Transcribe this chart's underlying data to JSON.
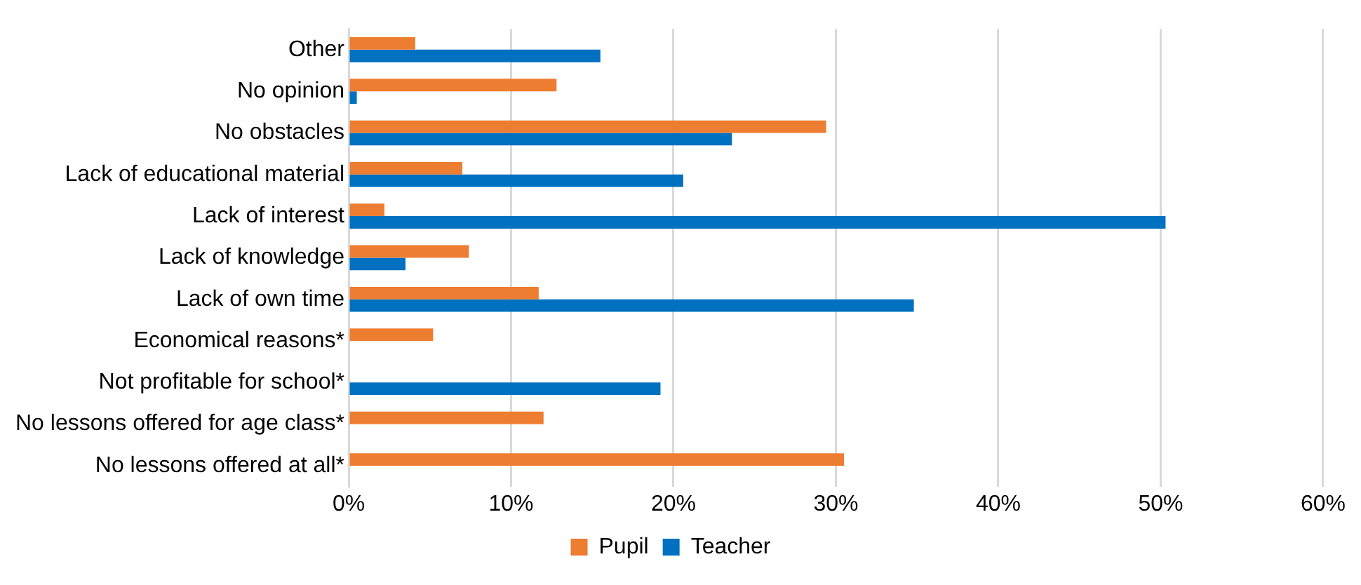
{
  "chart_data": {
    "type": "bar",
    "orientation": "horizontal",
    "categories": [
      "Other",
      "No opinion",
      "No obstacles",
      "Lack of educational material",
      "Lack of interest",
      "Lack of knowledge",
      "Lack of own time",
      "Economical reasons*",
      "Not profitable for school*",
      "No lessons offered for age class*",
      "No lessons offered at all*"
    ],
    "series": [
      {
        "name": "Pupil",
        "color": "#ed7d31",
        "values": [
          4.1,
          12.8,
          29.4,
          7.0,
          2.2,
          7.4,
          11.7,
          5.2,
          null,
          12.0,
          30.5
        ]
      },
      {
        "name": "Teacher",
        "color": "#0070c0",
        "values": [
          15.5,
          0.5,
          23.6,
          20.6,
          50.3,
          3.5,
          34.8,
          null,
          19.2,
          null,
          null
        ]
      }
    ],
    "xlim": [
      0,
      60
    ],
    "xticks": [
      {
        "value": 0,
        "label": "0%"
      },
      {
        "value": 10,
        "label": "10%"
      },
      {
        "value": 20,
        "label": "20%"
      },
      {
        "value": 30,
        "label": "30%"
      },
      {
        "value": 40,
        "label": "40%"
      },
      {
        "value": 50,
        "label": "50%"
      },
      {
        "value": 60,
        "label": "60%"
      }
    ],
    "grid": "x",
    "legend": "bottom"
  }
}
